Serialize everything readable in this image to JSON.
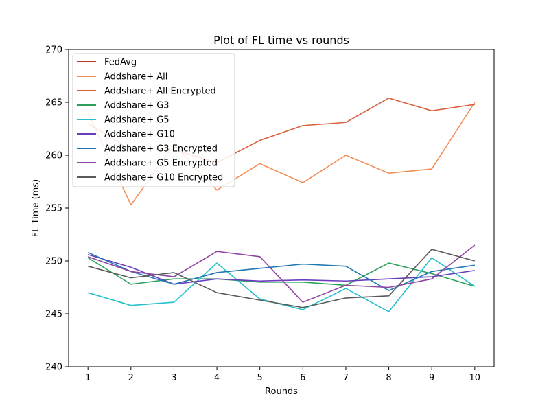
{
  "chart_data": {
    "type": "line",
    "title": "Plot of FL time vs rounds",
    "xlabel": "Rounds",
    "ylabel": "FL Time (ms)",
    "x": [
      1,
      2,
      3,
      4,
      5,
      6,
      7,
      8,
      9,
      10
    ],
    "x_ticks": [
      "1",
      "2",
      "3",
      "4",
      "5",
      "6",
      "7",
      "8",
      "9",
      "10"
    ],
    "ylim": [
      240,
      270
    ],
    "y_ticks": [
      "240",
      "245",
      "250",
      "255",
      "260",
      "265",
      "270"
    ],
    "grid": false,
    "legend_position": "top-left",
    "series": [
      {
        "name": "FedAvg",
        "color": "#c0392b",
        "values": [
          null,
          null,
          null,
          null,
          null,
          null,
          null,
          null,
          null,
          null
        ]
      },
      {
        "name": "Addshare+ All",
        "color": "#f28e55",
        "values": [
          264.0,
          255.3,
          261.0,
          256.7,
          259.2,
          257.4,
          260.0,
          258.3,
          258.7,
          265.0
        ]
      },
      {
        "name": "Addshare+ All Encrypted",
        "color": "#d9603b",
        "values": [
          263.0,
          260.5,
          260.5,
          259.3,
          261.4,
          262.8,
          263.1,
          265.4,
          264.2,
          264.8
        ]
      },
      {
        "name": "Addshare+ G3",
        "color": "#2ca05a",
        "values": [
          250.3,
          247.8,
          248.3,
          248.3,
          248.0,
          248.0,
          247.7,
          249.8,
          248.8,
          247.6
        ]
      },
      {
        "name": "Addshare+ G5",
        "color": "#22bfcc",
        "values": [
          247.0,
          245.8,
          246.1,
          249.8,
          246.4,
          245.4,
          247.4,
          245.2,
          250.3,
          247.6
        ]
      },
      {
        "name": "Addshare+ G10",
        "color": "#6a3dbf",
        "values": [
          250.6,
          249.4,
          247.8,
          248.3,
          248.1,
          248.2,
          248.1,
          248.3,
          248.5,
          249.1
        ]
      },
      {
        "name": "Addshare+ G3 Encrypted",
        "color": "#1f77b4",
        "values": [
          250.8,
          249.0,
          247.8,
          248.9,
          249.3,
          249.7,
          249.5,
          247.2,
          249.0,
          249.6
        ]
      },
      {
        "name": "Addshare+ G5 Encrypted",
        "color": "#8e44a0",
        "values": [
          250.4,
          249.0,
          248.5,
          250.9,
          250.4,
          246.1,
          247.7,
          247.5,
          248.3,
          251.5
        ]
      },
      {
        "name": "Addshare+ G10 Encrypted",
        "color": "#5a5a5a",
        "values": [
          249.5,
          248.4,
          248.9,
          247.0,
          246.3,
          245.6,
          246.5,
          246.7,
          251.1,
          250.0
        ]
      }
    ]
  }
}
